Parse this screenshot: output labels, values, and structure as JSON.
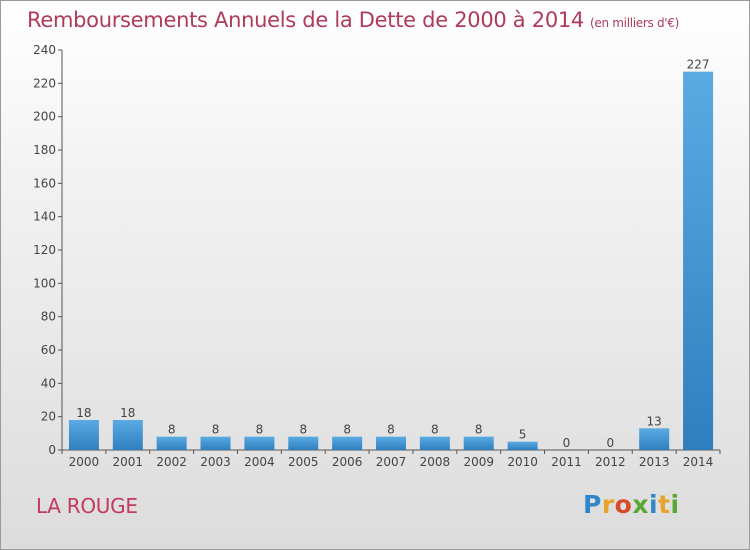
{
  "chart_data": {
    "type": "bar",
    "title": "Remboursements Annuels de la Dette de 2000 à 2014",
    "unit_note": "(en milliers d'€)",
    "categories": [
      "2000",
      "2001",
      "2002",
      "2003",
      "2004",
      "2005",
      "2006",
      "2007",
      "2008",
      "2009",
      "2010",
      "2011",
      "2012",
      "2013",
      "2014"
    ],
    "values": [
      18,
      18,
      8,
      8,
      8,
      8,
      8,
      8,
      8,
      8,
      5,
      0,
      0,
      13,
      227
    ],
    "ylim": [
      0,
      240
    ],
    "yticks": [
      0,
      20,
      40,
      60,
      80,
      100,
      120,
      140,
      160,
      180,
      200,
      220,
      240
    ],
    "grid": false,
    "colors": {
      "bar_light": "#5aaae3",
      "bar_dark": "#2f7fbf",
      "axis": "#555555",
      "text": "#444444"
    }
  },
  "location": "LA ROUGE",
  "logo": {
    "letters": [
      "P",
      "r",
      "o",
      "x",
      "i",
      "t",
      "i"
    ],
    "colors": [
      "#2f86c8",
      "#e8a32a",
      "#d84a2a",
      "#5aa832",
      "#2f86c8",
      "#e8a32a",
      "#5aa832"
    ]
  }
}
